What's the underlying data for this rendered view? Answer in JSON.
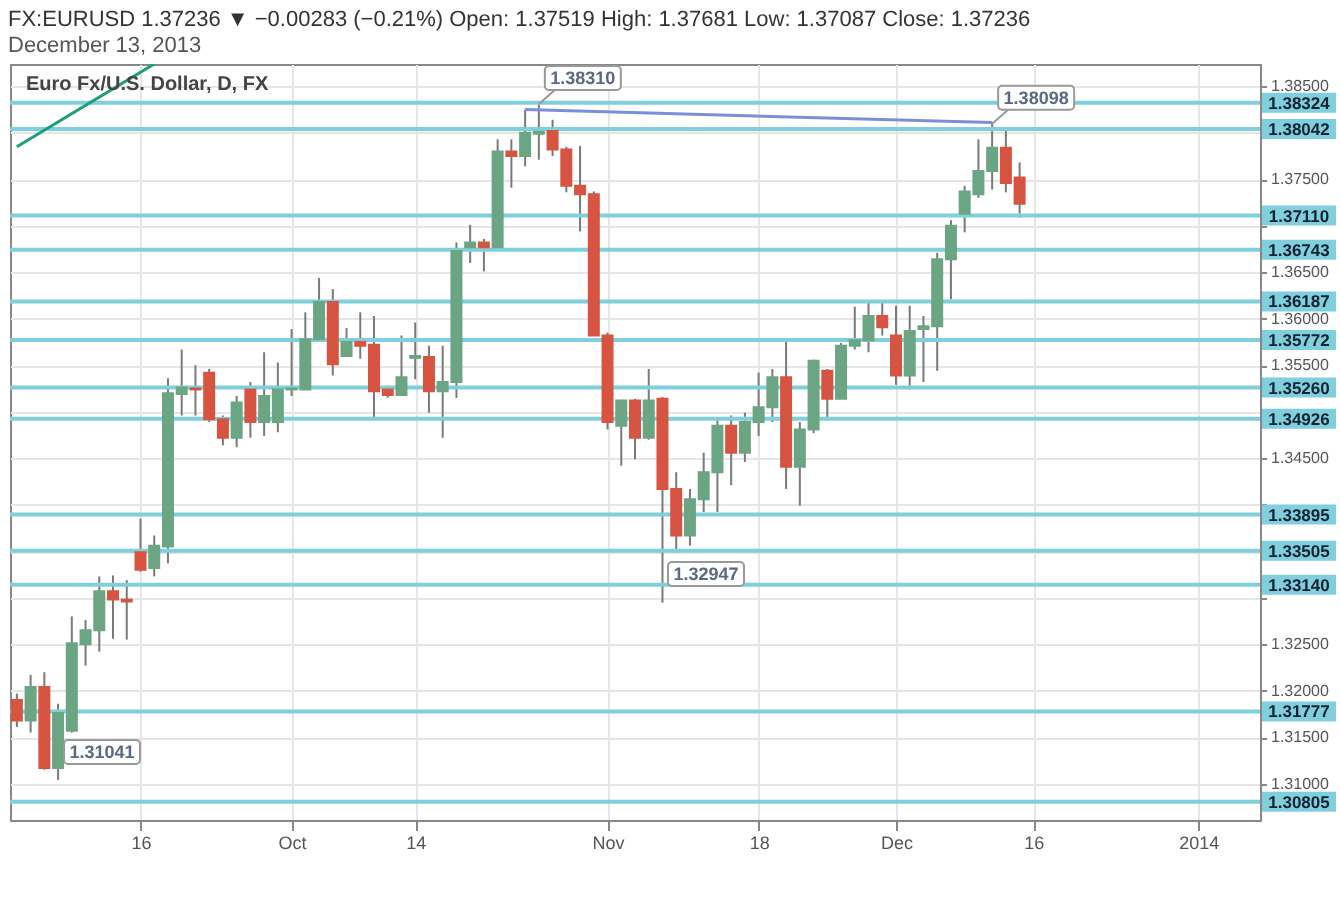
{
  "chart_data": {
    "type": "candlestick",
    "title": "FX:EURUSD 1.37236 ▼ −0.00283 (−0.21%)  Open: 1.37519  High: 1.37681  Low: 1.37087  Close: 1.37236",
    "subtitle": "December 13, 2013",
    "categories": [
      null,
      null,
      null,
      null,
      null,
      null,
      null,
      null,
      null,
      "16",
      null,
      null,
      null,
      null,
      null,
      null,
      null,
      null,
      null,
      null,
      "Oct",
      null,
      null,
      null,
      null,
      null,
      null,
      null,
      null,
      "14",
      null,
      null,
      null,
      null,
      null,
      null,
      null,
      null,
      null,
      null,
      null,
      null,
      null,
      "Nov",
      null,
      null,
      null,
      null,
      null,
      null,
      null,
      null,
      null,
      null,
      "18",
      null,
      null,
      null,
      null,
      null,
      null,
      null,
      null,
      null,
      "Dec",
      null,
      null,
      null,
      null,
      null,
      null,
      null,
      null,
      null,
      "16",
      null,
      null,
      null,
      null,
      null,
      null,
      null,
      null,
      null,
      null,
      null,
      "2014",
      null,
      null,
      null,
      null
    ],
    "ohlc": [
      [
        1.319,
        1.3197,
        1.3161,
        1.3168
      ],
      [
        1.3168,
        1.3217,
        1.3155,
        1.3204
      ],
      [
        1.3204,
        1.322,
        1.3115,
        1.3117
      ],
      [
        1.3117,
        1.3186,
        1.31041,
        1.3176
      ],
      [
        1.3157,
        1.328,
        1.3155,
        1.3251
      ],
      [
        1.325,
        1.3276,
        1.3227,
        1.3265
      ],
      [
        1.3265,
        1.3323,
        1.3242,
        1.3307
      ],
      [
        1.3307,
        1.3324,
        1.3256,
        1.3298
      ],
      [
        1.3298,
        1.3319,
        1.3255,
        1.3296
      ],
      [
        1.3349,
        1.3385,
        1.3328,
        1.333
      ],
      [
        1.3332,
        1.3367,
        1.3323,
        1.3356
      ],
      [
        1.3355,
        1.3536,
        1.3337,
        1.352
      ],
      [
        1.3519,
        1.3567,
        1.3496,
        1.3526
      ],
      [
        1.3525,
        1.355,
        1.3496,
        1.3524
      ],
      [
        1.3542,
        1.3546,
        1.3489,
        1.3492
      ],
      [
        1.3492,
        1.3496,
        1.3464,
        1.3472
      ],
      [
        1.3472,
        1.3517,
        1.3462,
        1.351
      ],
      [
        1.3524,
        1.3532,
        1.3472,
        1.3489
      ],
      [
        1.3489,
        1.3564,
        1.3474,
        1.3517
      ],
      [
        1.3489,
        1.3553,
        1.3478,
        1.3524
      ],
      [
        1.3524,
        1.3589,
        1.3517,
        1.3525
      ],
      [
        1.3524,
        1.3607,
        1.3524,
        1.3578
      ],
      [
        1.3578,
        1.3644,
        1.3578,
        1.3618
      ],
      [
        1.3618,
        1.3632,
        1.3539,
        1.3551
      ],
      [
        1.356,
        1.359,
        1.356,
        1.3575
      ],
      [
        1.3575,
        1.3607,
        1.3557,
        1.3571
      ],
      [
        1.3572,
        1.3603,
        1.3492,
        1.3522
      ],
      [
        1.3524,
        1.3528,
        1.3515,
        1.3518
      ],
      [
        1.3518,
        1.3582,
        1.3517,
        1.3537
      ],
      [
        1.3558,
        1.3596,
        1.3535,
        1.356
      ],
      [
        1.3559,
        1.3571,
        1.3499,
        1.3522
      ],
      [
        1.3522,
        1.3571,
        1.3472,
        1.3532
      ],
      [
        1.3532,
        1.3682,
        1.3515,
        1.3673
      ],
      [
        1.3677,
        1.3701,
        1.366,
        1.3682
      ],
      [
        1.3682,
        1.3686,
        1.3651,
        1.3677
      ],
      [
        1.3677,
        1.3793,
        1.3677,
        1.378
      ],
      [
        1.378,
        1.3793,
        1.3741,
        1.3775
      ],
      [
        1.3775,
        1.3825,
        1.3764,
        1.38
      ],
      [
        1.3799,
        1.3831,
        1.3771,
        1.3801
      ],
      [
        1.3802,
        1.3814,
        1.3775,
        1.3782
      ],
      [
        1.3782,
        1.3785,
        1.3736,
        1.3743
      ],
      [
        1.3743,
        1.3786,
        1.3694,
        1.3734
      ],
      [
        1.3734,
        1.3737,
        1.3582,
        1.3582
      ],
      [
        1.3582,
        1.3585,
        1.3481,
        1.3489
      ],
      [
        1.3485,
        1.3513,
        1.3442,
        1.3512
      ],
      [
        1.3512,
        1.3514,
        1.3449,
        1.3472
      ],
      [
        1.3472,
        1.3546,
        1.347,
        1.3512
      ],
      [
        1.3514,
        1.3516,
        1.32947,
        1.3417
      ],
      [
        1.3417,
        1.3435,
        1.3349,
        1.3367
      ],
      [
        1.3367,
        1.3417,
        1.3356,
        1.3406
      ],
      [
        1.3406,
        1.3456,
        1.3392,
        1.3435
      ],
      [
        1.3435,
        1.3492,
        1.3392,
        1.3485
      ],
      [
        1.3485,
        1.3496,
        1.3421,
        1.3456
      ],
      [
        1.3456,
        1.3499,
        1.3446,
        1.3489
      ],
      [
        1.3489,
        1.3542,
        1.3474,
        1.3505
      ],
      [
        1.3505,
        1.3546,
        1.3489,
        1.3537
      ],
      [
        1.3537,
        1.3577,
        1.3417,
        1.3441
      ],
      [
        1.3441,
        1.3489,
        1.3399,
        1.3481
      ],
      [
        1.3481,
        1.3556,
        1.3477,
        1.3555
      ],
      [
        1.3544,
        1.3546,
        1.3492,
        1.3514
      ],
      [
        1.3514,
        1.3574,
        1.3514,
        1.3571
      ],
      [
        1.3571,
        1.3613,
        1.3567,
        1.3577
      ],
      [
        1.3577,
        1.3618,
        1.3564,
        1.3603
      ],
      [
        1.3603,
        1.3618,
        1.3582,
        1.3591
      ],
      [
        1.3582,
        1.3614,
        1.3529,
        1.3539
      ],
      [
        1.3539,
        1.3614,
        1.3524,
        1.3587
      ],
      [
        1.3589,
        1.3603,
        1.3532,
        1.3592
      ],
      [
        1.3592,
        1.3671,
        1.3544,
        1.3664
      ],
      [
        1.3664,
        1.3706,
        1.3621,
        1.37
      ],
      [
        1.3713,
        1.3743,
        1.3693,
        1.3737
      ],
      [
        1.3734,
        1.3793,
        1.373,
        1.3759
      ],
      [
        1.3759,
        1.38098,
        1.3739,
        1.3784
      ],
      [
        1.3784,
        1.3802,
        1.3736,
        1.3746
      ],
      [
        1.37519,
        1.37681,
        1.37087,
        1.37236
      ],
      null,
      null,
      null,
      null,
      null,
      null,
      null,
      null,
      null,
      null,
      null,
      null,
      null,
      null,
      null,
      null,
      null
    ],
    "colors": [
      "#d75442",
      "#6ba583",
      "#d75442",
      "#6ba583",
      "#6ba583",
      "#6ba583",
      "#6ba583",
      "#d75442",
      "#d75442",
      "#d75442",
      "#6ba583",
      "#6ba583",
      "#6ba583",
      "#d75442",
      "#d75442",
      "#d75442",
      "#6ba583",
      "#d75442",
      "#6ba583",
      "#6ba583",
      "#6ba583",
      "#6ba583",
      "#6ba583",
      "#d75442",
      "#6ba583",
      "#d75442",
      "#d75442",
      "#d75442",
      "#6ba583",
      "#6ba583",
      "#d75442",
      "#6ba583",
      "#6ba583",
      "#6ba583",
      "#d75442",
      "#6ba583",
      "#d75442",
      "#6ba583",
      "#6ba583",
      "#d75442",
      "#d75442",
      "#d75442",
      "#d75442",
      "#d75442",
      "#6ba583",
      "#d75442",
      "#6ba583",
      "#d75442",
      "#d75442",
      "#6ba583",
      "#6ba583",
      "#6ba583",
      "#d75442",
      "#6ba583",
      "#6ba583",
      "#6ba583",
      "#d75442",
      "#6ba583",
      "#6ba583",
      "#d75442",
      "#6ba583",
      "#6ba583",
      "#6ba583",
      "#d75442",
      "#d75442",
      "#6ba583",
      "#6ba583",
      "#6ba583",
      "#6ba583",
      "#6ba583",
      "#6ba583",
      "#6ba583",
      "#d75442",
      "#d75442",
      null,
      null,
      null,
      null,
      null,
      null,
      null,
      null,
      null,
      null,
      null,
      null,
      null,
      null,
      null,
      null,
      null
    ],
    "series": [
      {
        "type": "line",
        "color": "#1f9e7a",
        "values": [
          1.3785,
          null,
          null,
          null,
          null,
          null,
          null,
          null,
          null,
          null,
          1.3874,
          null,
          null,
          null,
          null,
          null,
          null,
          null,
          null,
          null,
          null,
          null,
          null,
          null,
          null,
          null,
          null,
          null,
          null,
          null,
          null,
          null,
          null,
          null,
          null,
          null,
          null,
          null,
          null,
          null,
          null,
          null,
          null,
          null,
          null,
          null,
          null,
          null,
          null,
          null,
          null,
          null,
          null,
          null,
          null,
          null,
          null,
          null,
          null,
          null,
          null,
          null,
          null,
          null,
          null,
          null,
          null,
          null,
          null,
          null,
          null,
          null,
          null,
          null,
          null,
          null,
          null,
          null,
          null,
          null,
          null,
          null,
          null,
          null,
          null,
          null,
          null,
          null,
          null,
          null,
          null
        ]
      },
      {
        "type": "line",
        "color": "#7b8fd8",
        "values": [
          null,
          null,
          null,
          null,
          null,
          null,
          null,
          null,
          null,
          null,
          null,
          null,
          null,
          null,
          null,
          null,
          null,
          null,
          null,
          null,
          null,
          null,
          null,
          null,
          null,
          null,
          null,
          null,
          null,
          null,
          null,
          null,
          null,
          null,
          null,
          null,
          null,
          1.3825,
          null,
          null,
          null,
          null,
          null,
          null,
          null,
          null,
          null,
          null,
          null,
          null,
          null,
          null,
          null,
          null,
          null,
          null,
          null,
          null,
          null,
          null,
          null,
          null,
          null,
          null,
          null,
          null,
          null,
          null,
          null,
          null,
          null,
          1.3811,
          null,
          null,
          null,
          null,
          null,
          null,
          null,
          null,
          null,
          null,
          null,
          null,
          null,
          null,
          null,
          null,
          null,
          null,
          null
        ]
      }
    ],
    "ylim": [
      1.3061,
      1.3874
    ],
    "yticks": [
      {
        "value": 1.31,
        "label": "1.31000"
      },
      {
        "value": 1.315,
        "label": "1.31500"
      },
      {
        "value": 1.32,
        "label": "1.32000"
      },
      {
        "value": 1.325,
        "label": "1.32500"
      },
      {
        "value": 1.33,
        "label": null
      },
      {
        "value": 1.335,
        "label": null
      },
      {
        "value": 1.34,
        "label": null
      },
      {
        "value": 1.345,
        "label": "1.34500"
      },
      {
        "value": 1.35,
        "label": null
      },
      {
        "value": 1.355,
        "label": "1.35500"
      },
      {
        "value": 1.36,
        "label": "1.36000"
      },
      {
        "value": 1.365,
        "label": "1.36500"
      },
      {
        "value": 1.37,
        "label": null
      },
      {
        "value": 1.375,
        "label": "1.37500"
      },
      {
        "value": 1.38,
        "label": null
      },
      {
        "value": 1.385,
        "label": "1.38500"
      }
    ],
    "grid": true,
    "ref_lines": [
      {
        "axis": "y",
        "value": 1.38324,
        "label": "1.38324",
        "color": "#7fcfdc"
      },
      {
        "axis": "y",
        "value": 1.38042,
        "label": "1.38042",
        "color": "#7fcfdc"
      },
      {
        "axis": "y",
        "value": 1.3711,
        "label": "1.37110",
        "color": "#7fcfdc"
      },
      {
        "axis": "y",
        "value": 1.36743,
        "label": "1.36743",
        "color": "#7fcfdc"
      },
      {
        "axis": "y",
        "value": 1.36187,
        "label": "1.36187",
        "color": "#7fcfdc"
      },
      {
        "axis": "y",
        "value": 1.35772,
        "label": "1.35772",
        "color": "#7fcfdc"
      },
      {
        "axis": "y",
        "value": 1.3526,
        "label": "1.35260",
        "color": "#7fcfdc"
      },
      {
        "axis": "y",
        "value": 1.34926,
        "label": "1.34926",
        "color": "#7fcfdc"
      },
      {
        "axis": "y",
        "value": 1.33895,
        "label": "1.33895",
        "color": "#7fcfdc"
      },
      {
        "axis": "y",
        "value": 1.33505,
        "label": "1.33505",
        "color": "#7fcfdc"
      },
      {
        "axis": "y",
        "value": 1.3314,
        "label": "1.33140",
        "color": "#7fcfdc"
      },
      {
        "axis": "y",
        "value": 1.31777,
        "label": "1.31777",
        "color": "#7fcfdc"
      },
      {
        "axis": "y",
        "value": 1.30805,
        "label": "1.30805",
        "color": "#7fcfdc"
      }
    ],
    "annotations": [
      "Euro Fx/U.S. Dollar, D, FX",
      {
        "text": "1.38310",
        "y": 1.3831
      },
      {
        "text": "1.38098",
        "y": 1.38098
      },
      "1.32947",
      "1.31041"
    ]
  }
}
